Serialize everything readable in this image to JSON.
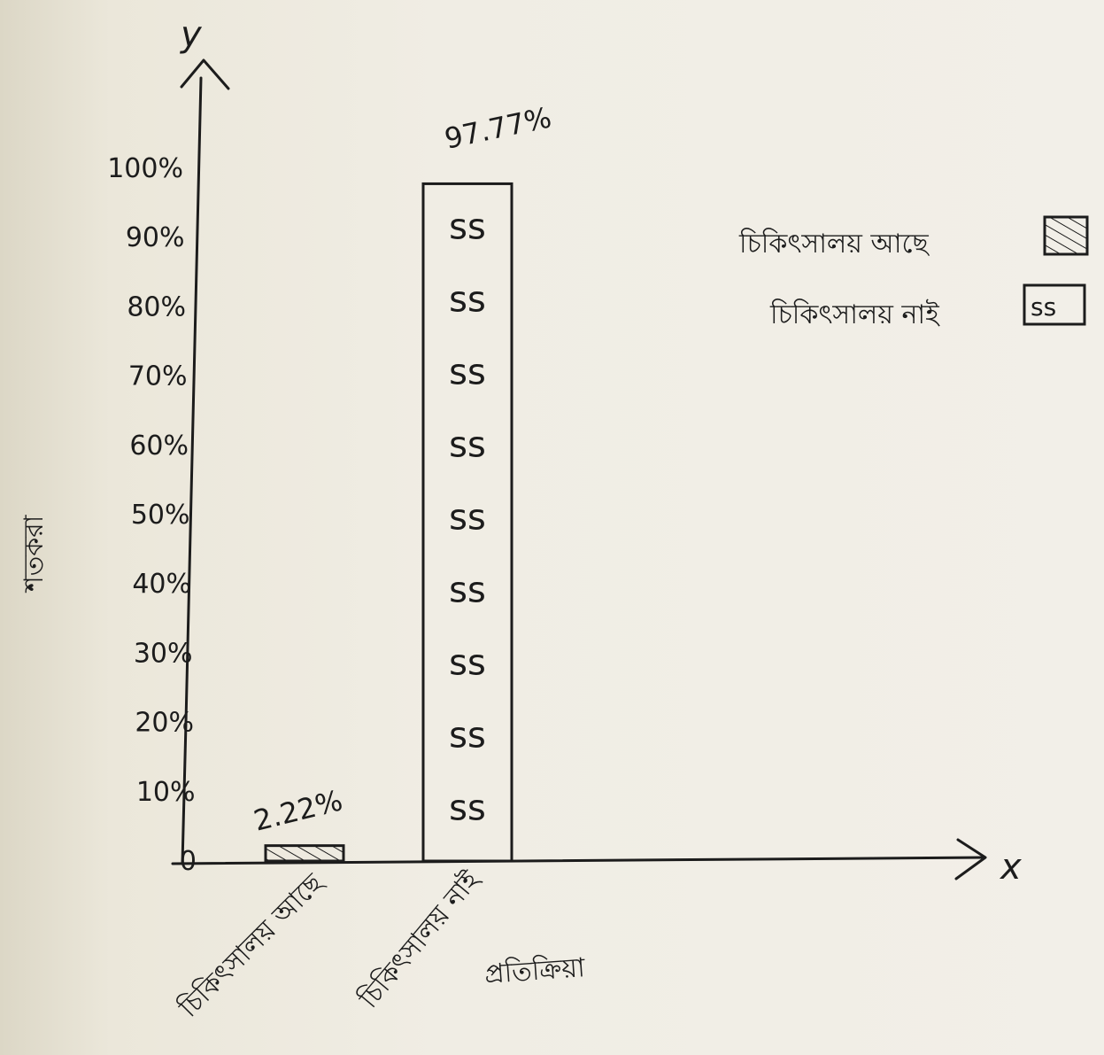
{
  "chart_data": {
    "type": "bar",
    "title": "",
    "xlabel": "প্রতিক্রিয়া",
    "ylabel": "শতকরা",
    "x_axis_letter": "x",
    "y_axis_letter": "y",
    "ylim": [
      0,
      100
    ],
    "yticks": [
      "0",
      "10%",
      "20%",
      "30%",
      "40%",
      "50%",
      "60%",
      "70%",
      "80%",
      "90%",
      "100%"
    ],
    "categories": [
      "চিকিৎসালয় আছে",
      "চিকিৎসালয় নাই"
    ],
    "values": [
      2.22,
      97.77
    ],
    "data_labels": [
      "2.22%",
      "97.77%"
    ],
    "legend": {
      "placement": "top-right",
      "entries": [
        {
          "label": "চিকিৎসালয় আছে",
          "pattern": "hatched"
        },
        {
          "label": "চিকিৎসালয় নাই",
          "pattern": "ss"
        }
      ]
    },
    "grid": false
  }
}
